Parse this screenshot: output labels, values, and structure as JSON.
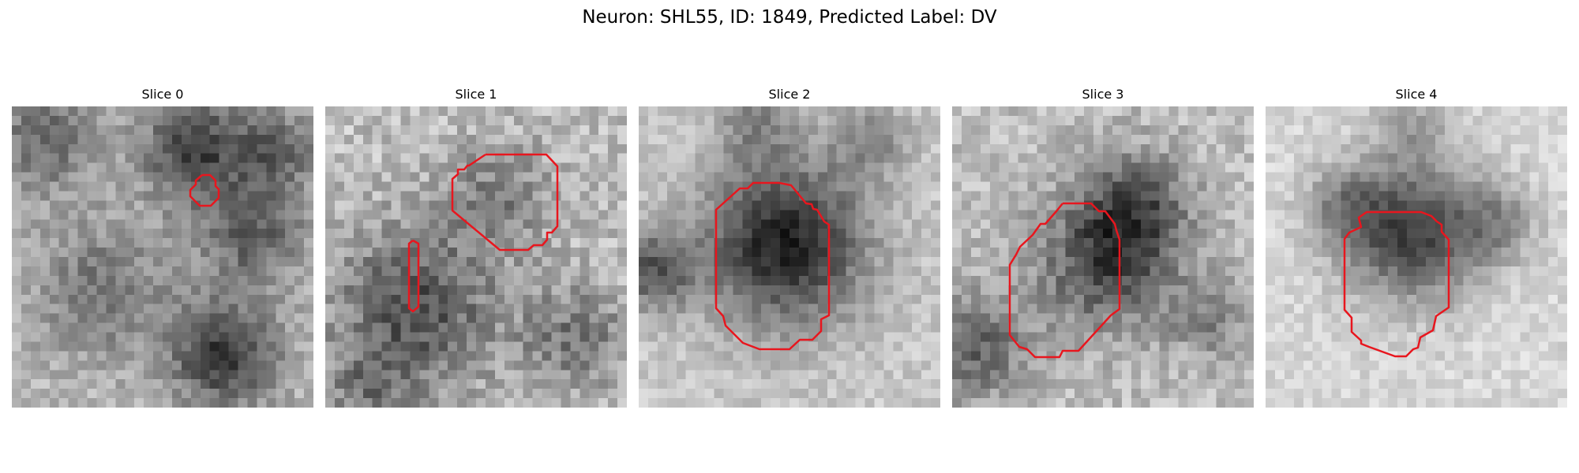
{
  "figure": {
    "title": "Neuron: SHL55, ID: 1849, Predicted Label: DV"
  },
  "colors": {
    "contour": "#e8161e",
    "background": "#ffffff"
  },
  "panels": [
    {
      "title": "Slice 0"
    },
    {
      "title": "Slice 1"
    },
    {
      "title": "Slice 2"
    },
    {
      "title": "Slice 3"
    },
    {
      "title": "Slice 4"
    }
  ]
}
